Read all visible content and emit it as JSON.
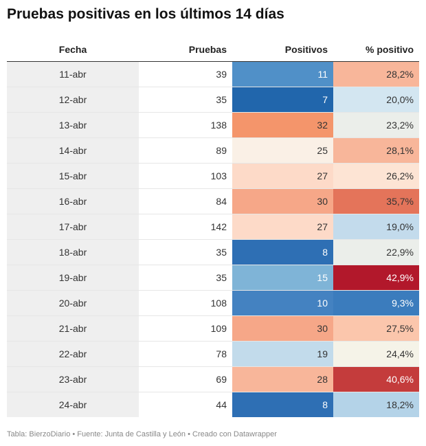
{
  "title": "Pruebas positivas en los últimos 14 días",
  "footer": "Tabla: BierzoDiario • Fuente: Junta de Castilla y León • Creado con Datawrapper",
  "chart_data": {
    "type": "table",
    "columns": [
      "Fecha",
      "Pruebas",
      "Positivos",
      "% positivo"
    ],
    "rows": [
      {
        "fecha": "11-abr",
        "pruebas": 39,
        "positivos": 11,
        "pct": "28,2%",
        "pos_bg": "#5090c8",
        "pos_fg": "#ffffff",
        "pct_bg": "#f8b69a",
        "pct_fg": "#333333"
      },
      {
        "fecha": "12-abr",
        "pruebas": 35,
        "positivos": 7,
        "pct": "20,0%",
        "pos_bg": "#2166ac",
        "pos_fg": "#ffffff",
        "pct_bg": "#d3e6f1",
        "pct_fg": "#333333"
      },
      {
        "fecha": "13-abr",
        "pruebas": 138,
        "positivos": 32,
        "pct": "23,2%",
        "pos_bg": "#f4956b",
        "pos_fg": "#333333",
        "pct_bg": "#ebeeea",
        "pct_fg": "#333333"
      },
      {
        "fecha": "14-abr",
        "pruebas": 89,
        "positivos": 25,
        "pct": "28,1%",
        "pos_bg": "#faf0e6",
        "pos_fg": "#333333",
        "pct_bg": "#f8b69a",
        "pct_fg": "#333333"
      },
      {
        "fecha": "15-abr",
        "pruebas": 103,
        "positivos": 27,
        "pct": "26,2%",
        "pos_bg": "#fddac8",
        "pos_fg": "#333333",
        "pct_bg": "#fde4d4",
        "pct_fg": "#333333"
      },
      {
        "fecha": "16-abr",
        "pruebas": 84,
        "positivos": 30,
        "pct": "35,7%",
        "pos_bg": "#f6a788",
        "pos_fg": "#333333",
        "pct_bg": "#e4745a",
        "pct_fg": "#333333"
      },
      {
        "fecha": "17-abr",
        "pruebas": 142,
        "positivos": 27,
        "pct": "19,0%",
        "pos_bg": "#fddac8",
        "pos_fg": "#333333",
        "pct_bg": "#c3dbec",
        "pct_fg": "#333333"
      },
      {
        "fecha": "18-abr",
        "pruebas": 35,
        "positivos": 8,
        "pct": "22,9%",
        "pos_bg": "#2e6fb4",
        "pos_fg": "#ffffff",
        "pct_bg": "#ebeeea",
        "pct_fg": "#333333"
      },
      {
        "fecha": "19-abr",
        "pruebas": 35,
        "positivos": 15,
        "pct": "42,9%",
        "pos_bg": "#7fb4d7",
        "pos_fg": "#ffffff",
        "pct_bg": "#b2182b",
        "pct_fg": "#ffffff"
      },
      {
        "fecha": "20-abr",
        "pruebas": 108,
        "positivos": 10,
        "pct": "9,3%",
        "pos_bg": "#4482c1",
        "pos_fg": "#ffffff",
        "pct_bg": "#3b7cbd",
        "pct_fg": "#ffffff"
      },
      {
        "fecha": "21-abr",
        "pruebas": 109,
        "positivos": 30,
        "pct": "27,5%",
        "pos_bg": "#f6a788",
        "pos_fg": "#333333",
        "pct_bg": "#fbc6ac",
        "pct_fg": "#333333"
      },
      {
        "fecha": "22-abr",
        "pruebas": 78,
        "positivos": 19,
        "pct": "24,4%",
        "pos_bg": "#c2dbeb",
        "pos_fg": "#333333",
        "pct_bg": "#f5f3e8",
        "pct_fg": "#333333"
      },
      {
        "fecha": "23-abr",
        "pruebas": 69,
        "positivos": 28,
        "pct": "40,6%",
        "pos_bg": "#f8b69a",
        "pos_fg": "#333333",
        "pct_bg": "#c43c3c",
        "pct_fg": "#ffffff"
      },
      {
        "fecha": "24-abr",
        "pruebas": 44,
        "positivos": 8,
        "pct": "18,2%",
        "pos_bg": "#2e6fb4",
        "pos_fg": "#ffffff",
        "pct_bg": "#b4d3e8",
        "pct_fg": "#333333"
      }
    ]
  }
}
